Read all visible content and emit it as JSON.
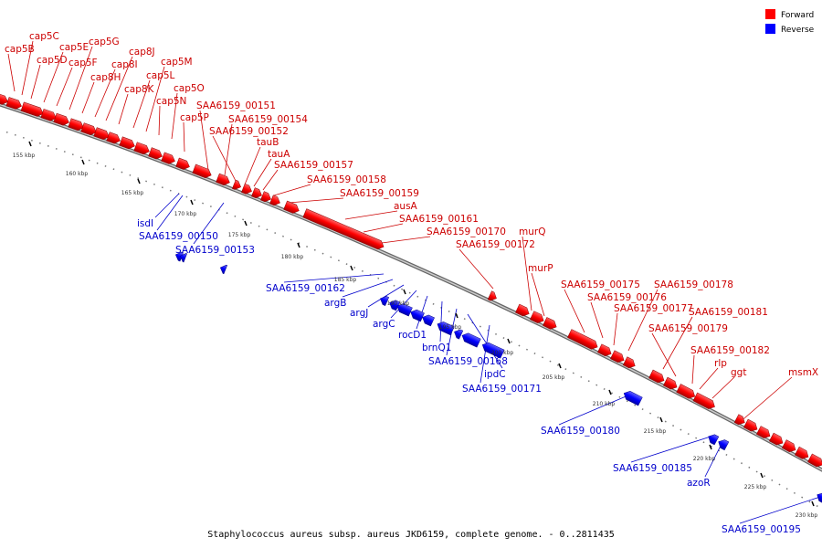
{
  "caption": "Staphylococcus aureus subsp. aureus JKD6159, complete genome. - 0..2811435",
  "legend": [
    {
      "label": "Forward",
      "color": "#ff0000"
    },
    {
      "label": "Reverse",
      "color": "#0000ff"
    }
  ],
  "colors": {
    "forward": "#ff0000",
    "reverse": "#0000ff",
    "forward_text": "#cc0000",
    "reverse_text": "#0000cc",
    "backbone": "#999999"
  },
  "ticks": [
    "155 kbp",
    "160 kbp",
    "165 kbp",
    "170 kbp",
    "175 kbp",
    "180 kbp",
    "185 kbp",
    "190 kbp",
    "195 kbp",
    "200 kbp",
    "205 kbp",
    "210 kbp",
    "215 kbp",
    "220 kbp",
    "225 kbp",
    "230 kbp"
  ],
  "forward_labels": [
    "cap5B",
    "cap5C",
    "cap5D",
    "cap5E",
    "cap5F",
    "cap5G",
    "cap8H",
    "cap8I",
    "cap8J",
    "cap8K",
    "cap5L",
    "cap5M",
    "cap5N",
    "cap5O",
    "cap5P",
    "SAA6159_00151",
    "SAA6159_00154",
    "SAA6159_00152",
    "tauB",
    "tauA",
    "SAA6159_00157",
    "SAA6159_00158",
    "SAA6159_00159",
    "ausA",
    "SAA6159_00161",
    "SAA6159_00170",
    "SAA6159_00172",
    "murQ",
    "murP",
    "SAA6159_00175",
    "SAA6159_00176",
    "SAA6159_00177",
    "SAA6159_00178",
    "SAA6159_00181",
    "SAA6159_00179",
    "SAA6159_00182",
    "rlp",
    "ggt",
    "msmX"
  ],
  "reverse_labels": [
    "isdI",
    "SAA6159_00150",
    "SAA6159_00153",
    "SAA6159_00162",
    "argB",
    "argJ",
    "argC",
    "rocD1",
    "brnQ1",
    "SAA6159_00168",
    "ipdC",
    "SAA6159_00171",
    "SAA6159_00180",
    "SAA6159_00185",
    "azoR",
    "SAA6159_00195"
  ]
}
